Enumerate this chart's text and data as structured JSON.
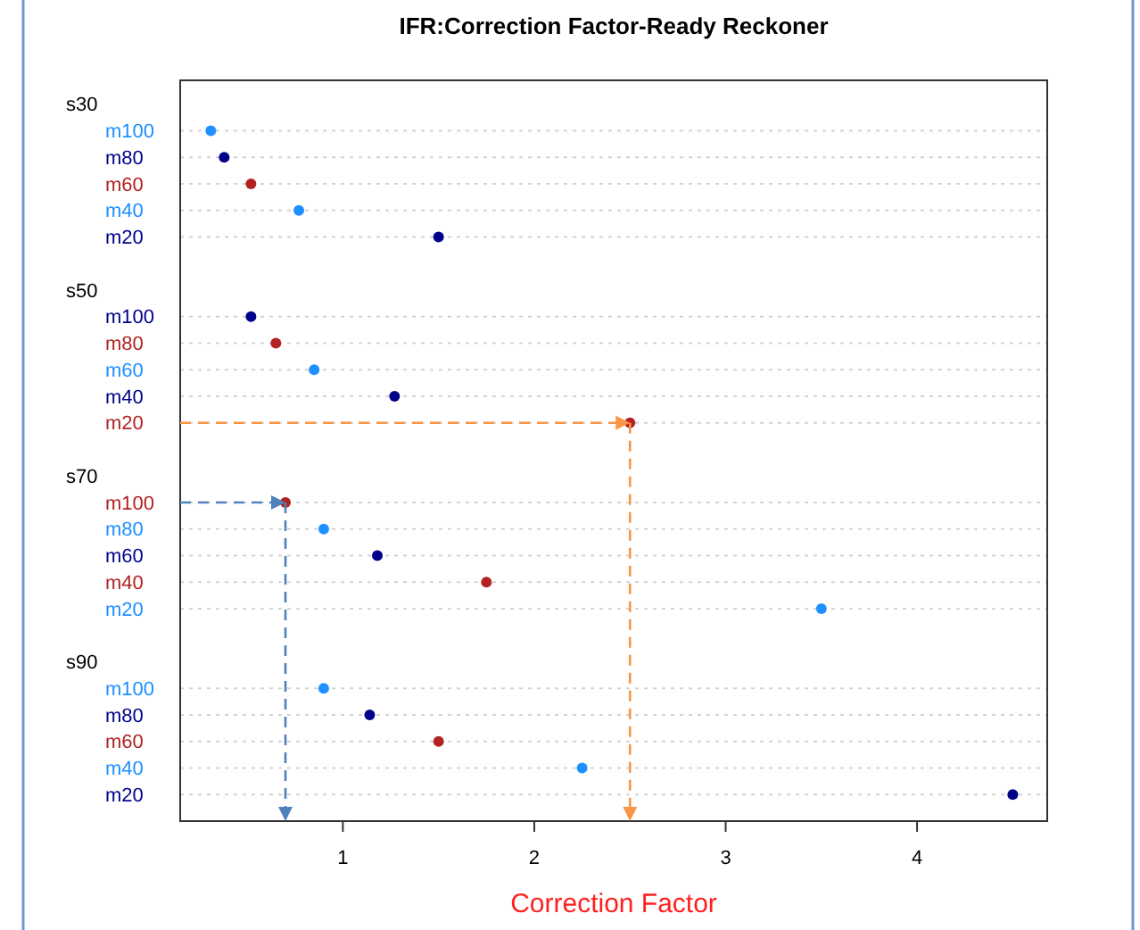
{
  "chart_data": {
    "type": "scatter",
    "orientation": "horizontal",
    "title": "IFR:Correction Factor-Ready Reckoner",
    "xlabel": "Correction Factor",
    "annotations": [
      "s30",
      "s50",
      "s70",
      "s90"
    ],
    "categories": [
      null,
      "m100",
      "m80",
      "m60",
      "m40",
      "m20",
      null,
      null,
      "m100",
      "m80",
      "m60",
      "m40",
      "m20",
      null,
      null,
      "m100",
      "m80",
      "m60",
      "m40",
      "m20",
      null,
      null,
      "m100",
      "m80",
      "m60",
      "m40",
      "m20"
    ],
    "values": [
      null,
      0.31,
      0.38,
      0.52,
      0.77,
      1.5,
      null,
      null,
      0.52,
      0.65,
      0.85,
      1.27,
      2.5,
      null,
      null,
      0.7,
      0.9,
      1.18,
      1.75,
      3.5,
      null,
      null,
      0.9,
      1.14,
      1.5,
      2.25,
      4.5
    ],
    "colors": [
      null,
      "#1e90ff",
      "#00008b",
      "#b22222",
      "#1e90ff",
      "#00008b",
      null,
      null,
      "#00008b",
      "#b22222",
      "#1e90ff",
      "#00008b",
      "#b22222",
      null,
      null,
      "#b22222",
      "#1e90ff",
      "#00008b",
      "#b22222",
      "#1e90ff",
      null,
      null,
      "#1e90ff",
      "#00008b",
      "#b22222",
      "#1e90ff",
      "#00008b"
    ],
    "xlim": [
      0.15,
      4.68
    ],
    "xticks": [
      1,
      2,
      3,
      4
    ],
    "grid": "y",
    "marker": "circle"
  }
}
